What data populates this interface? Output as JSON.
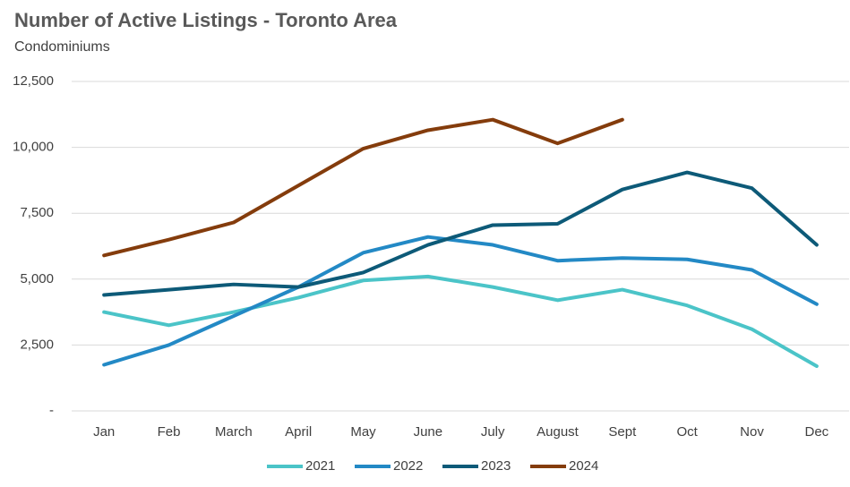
{
  "chart_data": {
    "type": "line",
    "title": "Number of Active Listings - Toronto Area",
    "subtitle": "Condominiums",
    "categories": [
      "Jan",
      "Feb",
      "March",
      "April",
      "May",
      "June",
      "July",
      "August",
      "Sept",
      "Oct",
      "Nov",
      "Dec"
    ],
    "series": [
      {
        "name": "2021",
        "color": "#4bc4c8",
        "values": [
          3750,
          3250,
          3750,
          4300,
          4950,
          5100,
          4700,
          4200,
          4600,
          4000,
          3100,
          1700
        ]
      },
      {
        "name": "2022",
        "color": "#2389c5",
        "values": [
          1750,
          2500,
          3600,
          4700,
          6000,
          6600,
          6300,
          5700,
          5800,
          5750,
          5350,
          4050
        ]
      },
      {
        "name": "2023",
        "color": "#0d5a78",
        "values": [
          4400,
          4600,
          4800,
          4700,
          5250,
          6300,
          7050,
          7100,
          8400,
          9050,
          8450,
          6300
        ]
      },
      {
        "name": "2024",
        "color": "#843c0c",
        "values": [
          5900,
          6500,
          7150,
          8550,
          9950,
          10650,
          11050,
          10150,
          11050,
          null,
          null,
          null
        ]
      }
    ],
    "ylim": [
      0,
      12500
    ],
    "yticks": [
      {
        "value": 0,
        "label": "-"
      },
      {
        "value": 2500,
        "label": "2,500"
      },
      {
        "value": 5000,
        "label": "5,000"
      },
      {
        "value": 7500,
        "label": "7,500"
      },
      {
        "value": 10000,
        "label": "10,000"
      },
      {
        "value": 12500,
        "label": "12,500"
      }
    ],
    "grid": true,
    "legend": "bottom"
  }
}
